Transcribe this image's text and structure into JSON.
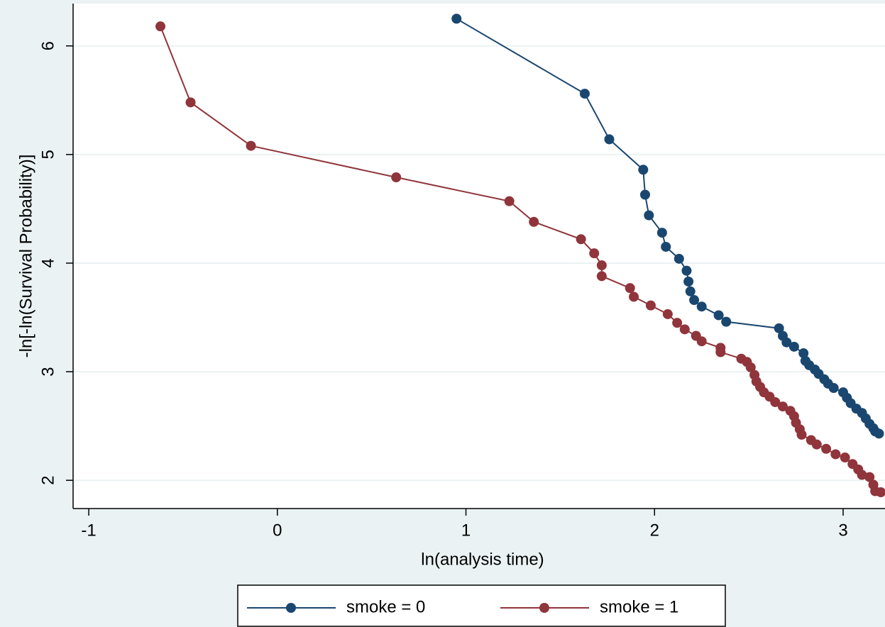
{
  "chart_data": {
    "type": "line",
    "x_label": "ln(analysis time)",
    "y_label": "-ln[-ln(Survival Probability)]",
    "xlim": [
      -1.083,
      3.222
    ],
    "ylim": [
      1.74,
      6.39
    ],
    "xticks": [
      -1,
      0,
      1,
      2,
      3
    ],
    "yticks": [
      2,
      3,
      4,
      5,
      6
    ],
    "grid": true,
    "legend": "bottom",
    "markers": true,
    "series": [
      {
        "name": "smoke = 0",
        "color": "#1a476f",
        "x": [
          0.95,
          1.63,
          1.76,
          1.94,
          1.95,
          1.97,
          2.04,
          2.06,
          2.13,
          2.17,
          2.18,
          2.19,
          2.21,
          2.25,
          2.34,
          2.38,
          2.66,
          2.68,
          2.7,
          2.74,
          2.79,
          2.8,
          2.82,
          2.85,
          2.87,
          2.9,
          2.92,
          2.95,
          3.0,
          3.02,
          3.04,
          3.07,
          3.1,
          3.12,
          3.14,
          3.16,
          3.17,
          3.19
        ],
        "values": [
          6.25,
          5.56,
          5.14,
          4.86,
          4.63,
          4.44,
          4.28,
          4.15,
          4.04,
          3.93,
          3.83,
          3.74,
          3.66,
          3.6,
          3.52,
          3.46,
          3.4,
          3.33,
          3.27,
          3.23,
          3.17,
          3.1,
          3.06,
          3.02,
          2.98,
          2.93,
          2.89,
          2.85,
          2.81,
          2.76,
          2.71,
          2.66,
          2.62,
          2.57,
          2.52,
          2.48,
          2.45,
          2.43
        ]
      },
      {
        "name": "smoke = 1",
        "color": "#90353b",
        "x": [
          -0.62,
          -0.46,
          -0.14,
          0.63,
          1.23,
          1.36,
          1.61,
          1.68,
          1.72,
          1.72,
          1.87,
          1.89,
          1.98,
          2.07,
          2.12,
          2.16,
          2.22,
          2.25,
          2.35,
          2.35,
          2.46,
          2.49,
          2.51,
          2.53,
          2.54,
          2.56,
          2.58,
          2.61,
          2.64,
          2.68,
          2.72,
          2.74,
          2.75,
          2.77,
          2.78,
          2.83,
          2.86,
          2.91,
          2.96,
          3.01,
          3.05,
          3.08,
          3.1,
          3.14,
          3.16,
          3.17,
          3.2
        ],
        "values": [
          6.18,
          5.48,
          5.08,
          4.79,
          4.57,
          4.38,
          4.22,
          4.09,
          3.98,
          3.88,
          3.77,
          3.69,
          3.61,
          3.53,
          3.45,
          3.39,
          3.33,
          3.28,
          3.22,
          3.18,
          3.12,
          3.09,
          3.04,
          2.97,
          2.91,
          2.86,
          2.81,
          2.77,
          2.72,
          2.68,
          2.64,
          2.59,
          2.53,
          2.47,
          2.42,
          2.37,
          2.33,
          2.29,
          2.24,
          2.21,
          2.15,
          2.1,
          2.05,
          2.03,
          1.96,
          1.9,
          1.89
        ]
      }
    ]
  }
}
